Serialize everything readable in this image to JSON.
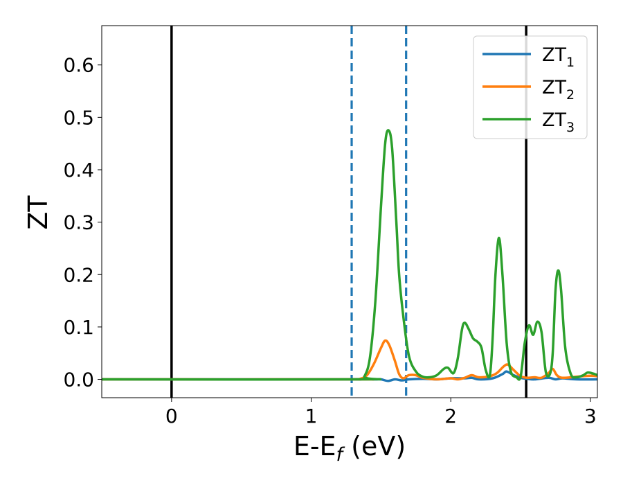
{
  "chart_data": {
    "type": "line",
    "xlabel": {
      "main": "E-E",
      "sub": "f",
      "rest": " (eV)"
    },
    "ylabel": "ZT",
    "xlim": [
      -0.5,
      3.05
    ],
    "ylim": [
      -0.035,
      0.675
    ],
    "xticks": [
      0,
      1,
      2,
      3
    ],
    "xtick_labels": [
      "0",
      "1",
      "2",
      "3"
    ],
    "yticks": [
      0.0,
      0.1,
      0.2,
      0.3,
      0.4,
      0.5,
      0.6
    ],
    "ytick_labels": [
      "0.0",
      "0.1",
      "0.2",
      "0.3",
      "0.4",
      "0.5",
      "0.6"
    ],
    "grid": false,
    "legend_position": "top-right",
    "series": [
      {
        "name": "ZT",
        "name_sub": "1",
        "color": "#1f77b4",
        "points": [
          [
            -0.5,
            0
          ],
          [
            1.2,
            0
          ],
          [
            1.3,
            0
          ],
          [
            1.4,
            0.001
          ],
          [
            1.45,
            0.0
          ],
          [
            1.5,
            0.0
          ],
          [
            1.55,
            -0.003
          ],
          [
            1.6,
            0.0
          ],
          [
            1.65,
            -0.002
          ],
          [
            1.7,
            0.0
          ],
          [
            1.8,
            0.001
          ],
          [
            1.9,
            0.0
          ],
          [
            2.0,
            0.002
          ],
          [
            2.1,
            0.002
          ],
          [
            2.15,
            0.003
          ],
          [
            2.2,
            0.0
          ],
          [
            2.3,
            0.002
          ],
          [
            2.37,
            0.01
          ],
          [
            2.4,
            0.015
          ],
          [
            2.45,
            0.008
          ],
          [
            2.5,
            0.003
          ],
          [
            2.55,
            0.001
          ],
          [
            2.6,
            0.0
          ],
          [
            2.7,
            0.003
          ],
          [
            2.75,
            0.0
          ],
          [
            2.8,
            0.002
          ],
          [
            2.9,
            0.0
          ],
          [
            3.05,
            0.0
          ]
        ]
      },
      {
        "name": "ZT",
        "name_sub": "2",
        "color": "#ff7f0e",
        "points": [
          [
            -0.5,
            0
          ],
          [
            1.3,
            0
          ],
          [
            1.35,
            0.001
          ],
          [
            1.4,
            0.008
          ],
          [
            1.45,
            0.03
          ],
          [
            1.5,
            0.06
          ],
          [
            1.53,
            0.074
          ],
          [
            1.56,
            0.065
          ],
          [
            1.6,
            0.035
          ],
          [
            1.63,
            0.01
          ],
          [
            1.66,
            0.002
          ],
          [
            1.7,
            0.008
          ],
          [
            1.75,
            0.008
          ],
          [
            1.8,
            0.003
          ],
          [
            1.9,
            0.0
          ],
          [
            2.0,
            0.002
          ],
          [
            2.05,
            0.0
          ],
          [
            2.1,
            0.003
          ],
          [
            2.15,
            0.008
          ],
          [
            2.2,
            0.004
          ],
          [
            2.28,
            0.006
          ],
          [
            2.33,
            0.012
          ],
          [
            2.38,
            0.025
          ],
          [
            2.41,
            0.028
          ],
          [
            2.45,
            0.018
          ],
          [
            2.5,
            0.006
          ],
          [
            2.55,
            0.003
          ],
          [
            2.6,
            0.004
          ],
          [
            2.65,
            0.003
          ],
          [
            2.7,
            0.012
          ],
          [
            2.73,
            0.02
          ],
          [
            2.76,
            0.008
          ],
          [
            2.8,
            0.003
          ],
          [
            2.9,
            0.005
          ],
          [
            3.0,
            0.007
          ],
          [
            3.05,
            0.006
          ]
        ]
      },
      {
        "name": "ZT",
        "name_sub": "3",
        "color": "#2ca02c",
        "points": [
          [
            -0.5,
            0
          ],
          [
            1.35,
            0
          ],
          [
            1.38,
            0.005
          ],
          [
            1.42,
            0.04
          ],
          [
            1.46,
            0.15
          ],
          [
            1.5,
            0.33
          ],
          [
            1.53,
            0.45
          ],
          [
            1.555,
            0.475
          ],
          [
            1.58,
            0.44
          ],
          [
            1.61,
            0.3
          ],
          [
            1.63,
            0.2
          ],
          [
            1.66,
            0.12
          ],
          [
            1.7,
            0.045
          ],
          [
            1.75,
            0.015
          ],
          [
            1.8,
            0.005
          ],
          [
            1.85,
            0.004
          ],
          [
            1.9,
            0.008
          ],
          [
            1.95,
            0.02
          ],
          [
            1.98,
            0.022
          ],
          [
            2.02,
            0.012
          ],
          [
            2.05,
            0.04
          ],
          [
            2.08,
            0.095
          ],
          [
            2.1,
            0.108
          ],
          [
            2.13,
            0.095
          ],
          [
            2.16,
            0.078
          ],
          [
            2.19,
            0.072
          ],
          [
            2.22,
            0.06
          ],
          [
            2.25,
            0.018
          ],
          [
            2.28,
            0.008
          ],
          [
            2.3,
            0.08
          ],
          [
            2.32,
            0.2
          ],
          [
            2.345,
            0.27
          ],
          [
            2.37,
            0.2
          ],
          [
            2.4,
            0.07
          ],
          [
            2.43,
            0.015
          ],
          [
            2.47,
            0.004
          ],
          [
            2.5,
            0.005
          ],
          [
            2.53,
            0.07
          ],
          [
            2.56,
            0.103
          ],
          [
            2.59,
            0.085
          ],
          [
            2.62,
            0.11
          ],
          [
            2.65,
            0.09
          ],
          [
            2.68,
            0.015
          ],
          [
            2.71,
            0.01
          ],
          [
            2.73,
            0.05
          ],
          [
            2.75,
            0.17
          ],
          [
            2.77,
            0.208
          ],
          [
            2.79,
            0.17
          ],
          [
            2.82,
            0.06
          ],
          [
            2.86,
            0.01
          ],
          [
            2.9,
            0.004
          ],
          [
            2.95,
            0.008
          ],
          [
            2.98,
            0.013
          ],
          [
            3.02,
            0.011
          ],
          [
            3.05,
            0.008
          ]
        ]
      }
    ],
    "vlines": [
      {
        "x": 0.0,
        "color": "#000000",
        "style": "solid"
      },
      {
        "x": 2.54,
        "color": "#000000",
        "style": "solid"
      },
      {
        "x": 1.29,
        "color": "#1f77b4",
        "style": "dashed"
      },
      {
        "x": 1.68,
        "color": "#1f77b4",
        "style": "dashed"
      }
    ]
  }
}
